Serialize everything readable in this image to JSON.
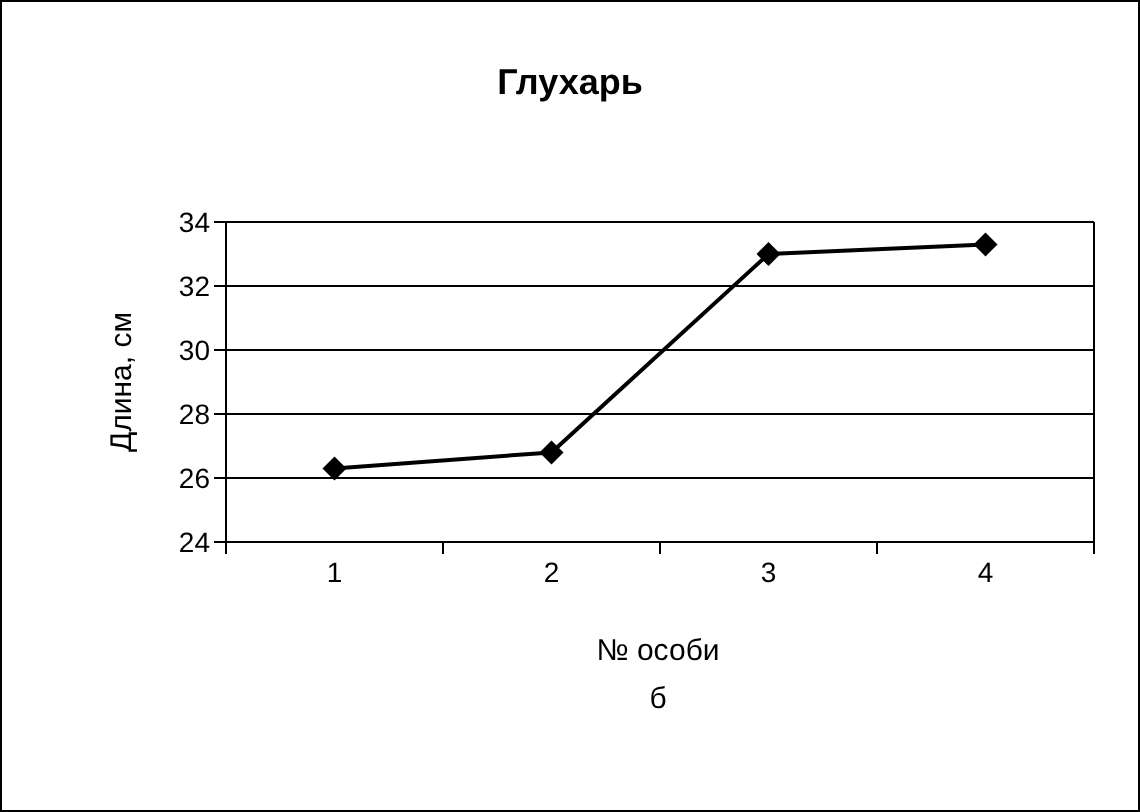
{
  "chart_data": {
    "type": "line",
    "title": "Глухарь",
    "xlabel": "№ особи",
    "ylabel": "Длина, см",
    "annotations": [
      "б"
    ],
    "categories": [
      "1",
      "2",
      "3",
      "4"
    ],
    "series": [
      {
        "color": "#000000",
        "values": [
          26.3,
          26.8,
          33.0,
          33.3
        ]
      }
    ],
    "ylim": [
      24,
      34
    ],
    "yticks": [
      24,
      26,
      28,
      30,
      32,
      34
    ],
    "grid": "y",
    "marker": "diamond",
    "line_style": "solid"
  }
}
